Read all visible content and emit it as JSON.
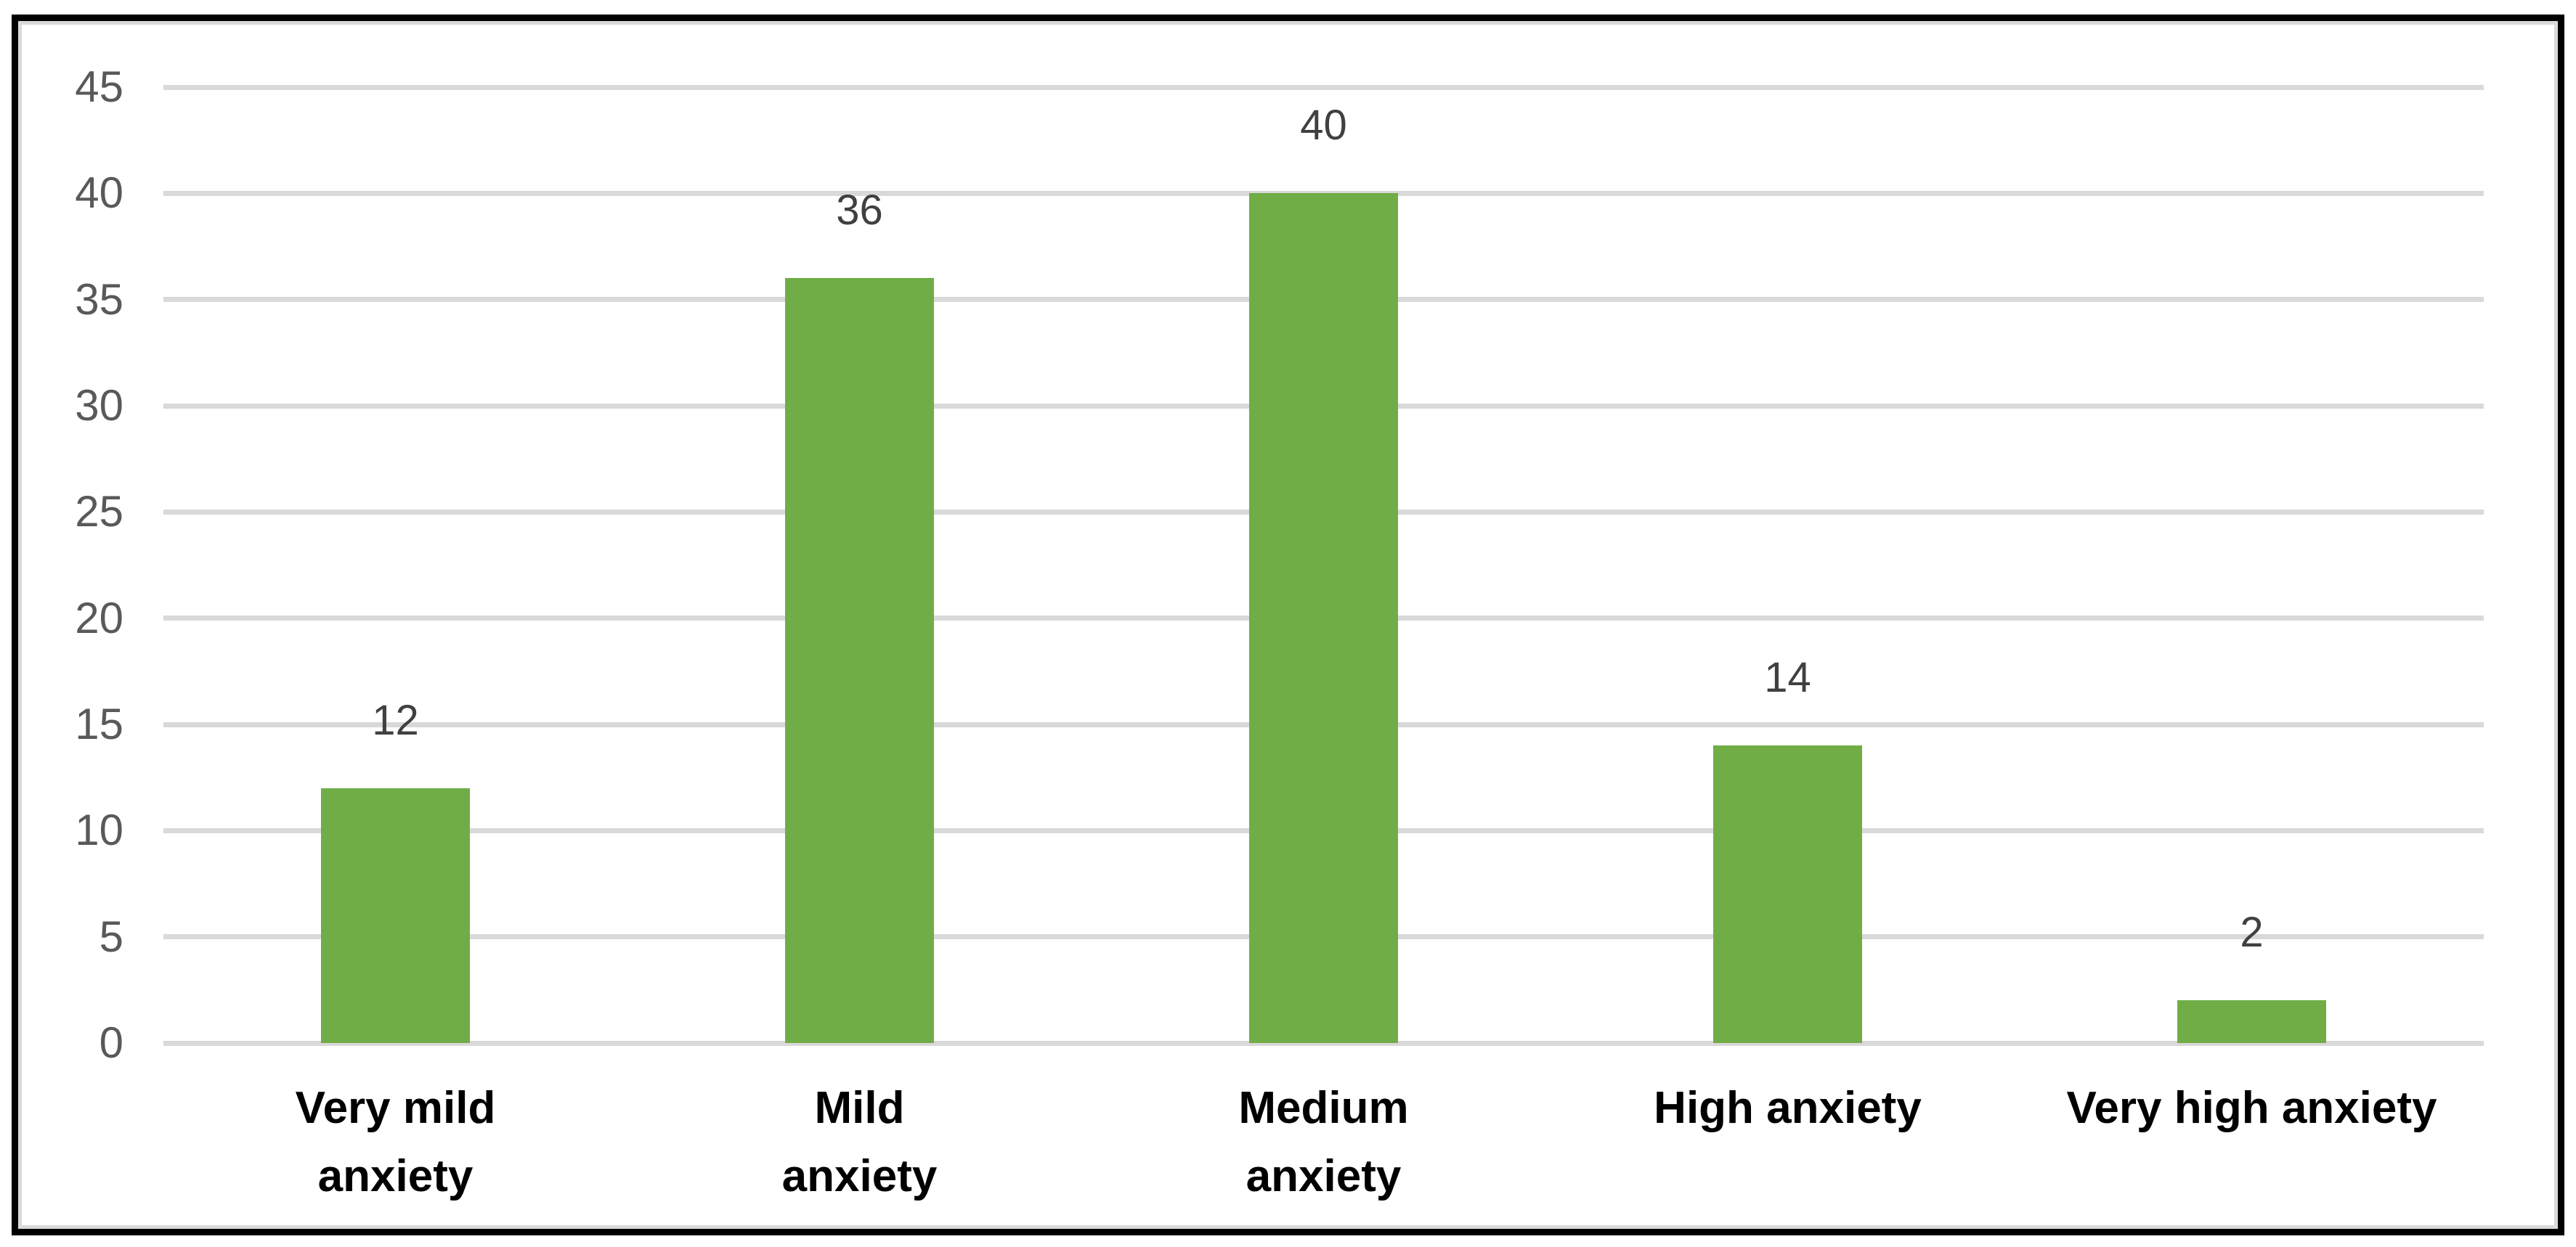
{
  "chart_data": {
    "type": "bar",
    "title": "",
    "categories": [
      "Very mild anxiety",
      "Mild anxiety",
      "Medium anxiety",
      "High anxiety",
      "Very high anxiety"
    ],
    "categories_lines": [
      [
        "Very mild",
        "anxiety"
      ],
      [
        "Mild",
        "anxiety"
      ],
      [
        "Medium",
        "anxiety"
      ],
      [
        "High anxiety"
      ],
      [
        "Very high anxiety"
      ]
    ],
    "values": [
      12,
      36,
      40,
      14,
      2
    ],
    "data_labels": [
      "12",
      "36",
      "40",
      "14",
      "2"
    ],
    "y_ticks": [
      0,
      5,
      10,
      15,
      20,
      25,
      30,
      35,
      40,
      45
    ],
    "ylim": [
      0,
      45
    ],
    "grid": true,
    "legend": "none",
    "bar_color": "#70AD47",
    "gridline_color": "#D9D9D9",
    "axis_label_color": "#595959",
    "data_label_color": "#404040",
    "category_label_color": "#000000",
    "border_color": "#000000"
  }
}
